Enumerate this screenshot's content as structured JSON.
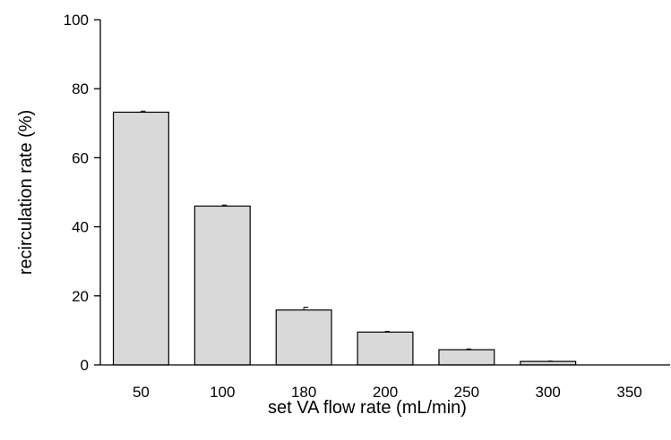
{
  "chart_data": {
    "type": "bar",
    "categories": [
      "50",
      "100",
      "180",
      "200",
      "250",
      "300",
      "350"
    ],
    "values": [
      73.2,
      46.0,
      15.9,
      9.5,
      4.4,
      1.0,
      0.0
    ],
    "errors": [
      0.3,
      0.3,
      0.8,
      0.2,
      0.2,
      0.1,
      0.0
    ],
    "title": "",
    "xlabel": "set VA flow rate (mL/min)",
    "ylabel": "recirculation rate (%)",
    "ylim": [
      0,
      100
    ],
    "yticks": [
      0,
      20,
      40,
      60,
      80,
      100
    ],
    "grid": false,
    "bar_color": "#d9d9d9",
    "bar_edge_color": "#000000"
  }
}
